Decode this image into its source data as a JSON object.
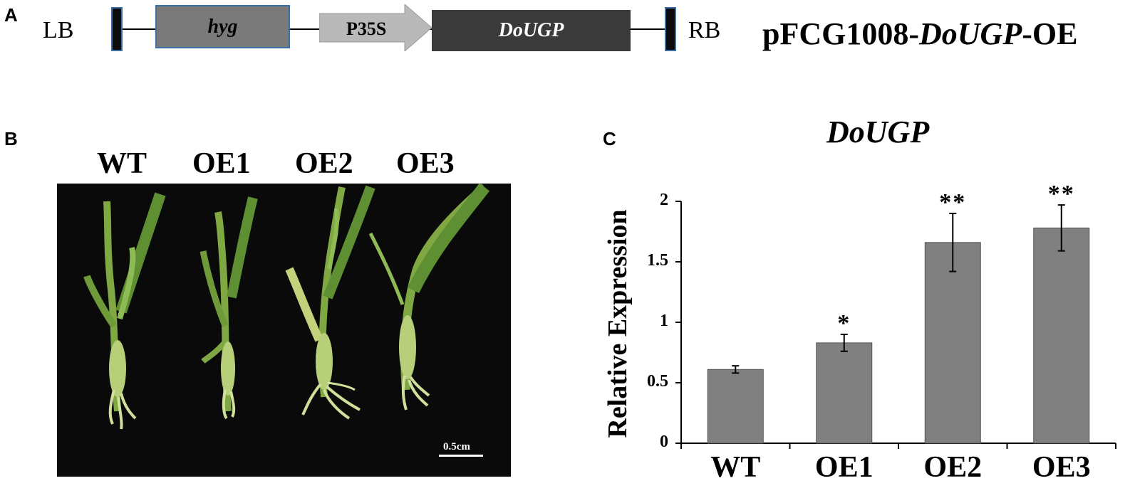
{
  "panels": {
    "a_letter": "A",
    "b_letter": "B",
    "c_letter": "C"
  },
  "construct": {
    "left_border": "LB",
    "right_border": "RB",
    "marker_gene": "hyg",
    "promoter": "P35S",
    "target_gene": "DoUGP",
    "name_prefix": "pFCG1008-",
    "name_gene": "DoUGP",
    "name_suffix": "-OE",
    "colors": {
      "marker_fill": "#7a7a7a",
      "promoter_fill": "#b9b9b9",
      "gene_fill": "#3a3a3a",
      "border_cap": "#0b0b0b",
      "cap_outline": "#3a6fa8"
    }
  },
  "photo": {
    "labels": [
      "WT",
      "OE1",
      "OE2",
      "OE3"
    ],
    "scale_bar": "0.5cm",
    "background": "#0a0a0a",
    "plant_color": "#8fb54a"
  },
  "chart_data": {
    "type": "bar",
    "title": "DoUGP",
    "xlabel": "",
    "ylabel": "Relative Expression",
    "categories": [
      "WT",
      "OE1",
      "OE2",
      "OE3"
    ],
    "values": [
      0.61,
      0.83,
      1.66,
      1.78
    ],
    "errors": [
      0.03,
      0.07,
      0.24,
      0.19
    ],
    "significance": [
      "",
      "*",
      "**",
      "**"
    ],
    "ylim": [
      0,
      2
    ],
    "yticks": [
      "0",
      "0.5",
      "1",
      "1.5",
      "2"
    ],
    "grid": false,
    "bar_color": "#808080"
  }
}
